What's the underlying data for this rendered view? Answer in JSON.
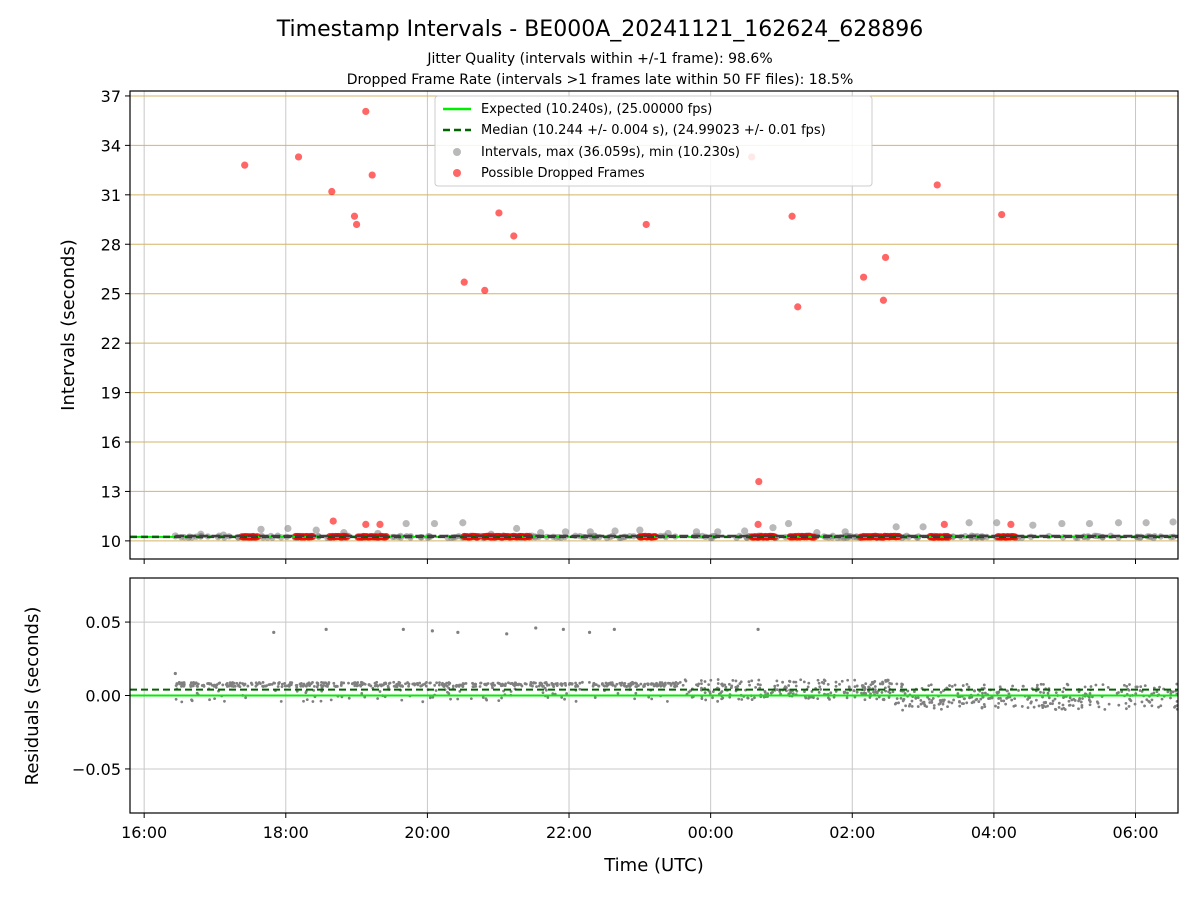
{
  "title": "Timestamp Intervals - BE000A_20241121_162624_628896",
  "subtitle_1": "Jitter Quality (intervals within +/-1 frame): 98.6%",
  "subtitle_2": "Dropped Frame Rate (intervals >1 frames late within 50 FF files): 18.5%",
  "colors": {
    "expected": "#00ee00",
    "median": "#006400",
    "intervals": "#808080",
    "dropped": "#ff0000",
    "hgrid_top": "#d4b467",
    "grid": "#c8c8c8"
  },
  "chart_data": [
    {
      "type": "scatter",
      "panel": "intervals",
      "xlabel": "",
      "ylabel": "Intervals (seconds)",
      "xlim_hours": [
        15.8,
        30.6
      ],
      "ylim": [
        8.9,
        37.3
      ],
      "yticks": [
        10,
        13,
        16,
        19,
        22,
        25,
        28,
        31,
        34,
        37
      ],
      "xticks": [
        {
          "hour": 16,
          "label": "16:00"
        },
        {
          "hour": 18,
          "label": "18:00"
        },
        {
          "hour": 20,
          "label": "20:00"
        },
        {
          "hour": 22,
          "label": "22:00"
        },
        {
          "hour": 24,
          "label": "00:00"
        },
        {
          "hour": 26,
          "label": "02:00"
        },
        {
          "hour": 28,
          "label": "04:00"
        },
        {
          "hour": 30,
          "label": "06:00"
        }
      ],
      "legend": {
        "placement": "upper-center",
        "entries": [
          "Expected (10.240s), (25.00000 fps)",
          "Median (10.244 +/- 0.004 s), (24.99023 +/- 0.01 fps)",
          "Intervals, max (36.059s), min (10.230s)",
          "Possible Dropped Frames"
        ]
      },
      "expected_value": 10.24,
      "median_value": 10.244,
      "data_start_hour": 16.44,
      "data_end_hour": 30.6,
      "dropped_frames": [
        [
          17.42,
          32.8
        ],
        [
          18.18,
          33.3
        ],
        [
          18.65,
          31.2
        ],
        [
          18.97,
          29.7
        ],
        [
          19.0,
          29.2
        ],
        [
          19.13,
          36.06
        ],
        [
          19.22,
          32.2
        ],
        [
          20.52,
          25.7
        ],
        [
          20.81,
          25.2
        ],
        [
          21.01,
          29.9
        ],
        [
          21.22,
          28.5
        ],
        [
          23.09,
          29.2
        ],
        [
          24.58,
          33.3
        ],
        [
          25.15,
          29.7
        ],
        [
          25.23,
          24.2
        ],
        [
          26.16,
          26.0
        ],
        [
          26.44,
          24.6
        ],
        [
          26.47,
          27.2
        ],
        [
          27.2,
          31.6
        ],
        [
          28.11,
          29.8
        ],
        [
          24.68,
          13.6
        ],
        [
          18.67,
          11.2
        ],
        [
          19.13,
          11.0
        ],
        [
          19.33,
          11.0
        ],
        [
          24.67,
          11.0
        ],
        [
          27.3,
          11.0
        ],
        [
          28.24,
          11.0
        ]
      ],
      "dropped_clusters_at_baseline": [
        [
          17.38,
          17.6
        ],
        [
          18.14,
          18.38
        ],
        [
          18.62,
          18.86
        ],
        [
          19.02,
          19.42
        ],
        [
          20.52,
          20.72
        ],
        [
          20.8,
          21.0
        ],
        [
          21.02,
          21.24
        ],
        [
          21.26,
          21.44
        ],
        [
          23.0,
          23.22
        ],
        [
          24.58,
          24.9
        ],
        [
          25.12,
          25.46
        ],
        [
          26.12,
          26.36
        ],
        [
          26.4,
          26.66
        ],
        [
          27.1,
          27.36
        ],
        [
          28.06,
          28.3
        ]
      ],
      "gray_outliers": [
        [
          16.44,
          10.3
        ],
        [
          16.8,
          10.4
        ],
        [
          17.12,
          10.35
        ],
        [
          17.65,
          10.7
        ],
        [
          18.03,
          10.75
        ],
        [
          18.43,
          10.65
        ],
        [
          18.82,
          10.5
        ],
        [
          19.3,
          10.45
        ],
        [
          19.7,
          11.05
        ],
        [
          20.1,
          11.05
        ],
        [
          20.5,
          11.1
        ],
        [
          20.9,
          10.4
        ],
        [
          21.26,
          10.75
        ],
        [
          21.6,
          10.5
        ],
        [
          21.95,
          10.55
        ],
        [
          22.3,
          10.55
        ],
        [
          22.65,
          10.6
        ],
        [
          23.0,
          10.65
        ],
        [
          23.4,
          10.45
        ],
        [
          23.8,
          10.55
        ],
        [
          24.1,
          10.55
        ],
        [
          24.48,
          10.6
        ],
        [
          24.88,
          10.8
        ],
        [
          25.1,
          11.05
        ],
        [
          25.5,
          10.5
        ],
        [
          25.9,
          10.55
        ],
        [
          26.62,
          10.85
        ],
        [
          27.0,
          10.85
        ],
        [
          27.65,
          11.1
        ],
        [
          28.04,
          11.1
        ],
        [
          28.55,
          10.95
        ],
        [
          28.96,
          11.05
        ],
        [
          29.35,
          11.05
        ],
        [
          29.76,
          11.1
        ],
        [
          30.15,
          11.1
        ],
        [
          30.53,
          11.15
        ]
      ]
    },
    {
      "type": "scatter",
      "panel": "residuals",
      "xlabel": "Time (UTC)",
      "ylabel": "Residuals (seconds)",
      "xlim_hours": [
        15.8,
        30.6
      ],
      "ylim": [
        -0.08,
        0.08
      ],
      "yticks": [
        {
          "value": 0.05,
          "label": "0.05"
        },
        {
          "value": 0.0,
          "label": "0.00"
        },
        {
          "value": -0.05,
          "label": "−0.05"
        }
      ],
      "expected_value": 0.0,
      "median_value": 0.004,
      "band_segments": [
        {
          "start": 16.44,
          "end": 23.6,
          "center": 0.0075,
          "spread": 0.0015,
          "below_spread": 0.012
        },
        {
          "start": 23.6,
          "end": 26.6,
          "center": 0.004,
          "spread": 0.007,
          "below_spread": 0.008
        },
        {
          "start": 26.6,
          "end": 30.6,
          "center": 0.0,
          "spread": 0.008,
          "below_spread": 0.01
        }
      ],
      "outliers": [
        [
          16.44,
          0.015
        ],
        [
          17.83,
          0.043
        ],
        [
          18.57,
          0.045
        ],
        [
          19.66,
          0.045
        ],
        [
          20.07,
          0.044
        ],
        [
          20.43,
          0.043
        ],
        [
          21.12,
          0.042
        ],
        [
          21.53,
          0.046
        ],
        [
          21.92,
          0.045
        ],
        [
          22.29,
          0.043
        ],
        [
          22.64,
          0.045
        ],
        [
          24.67,
          0.045
        ]
      ]
    }
  ]
}
